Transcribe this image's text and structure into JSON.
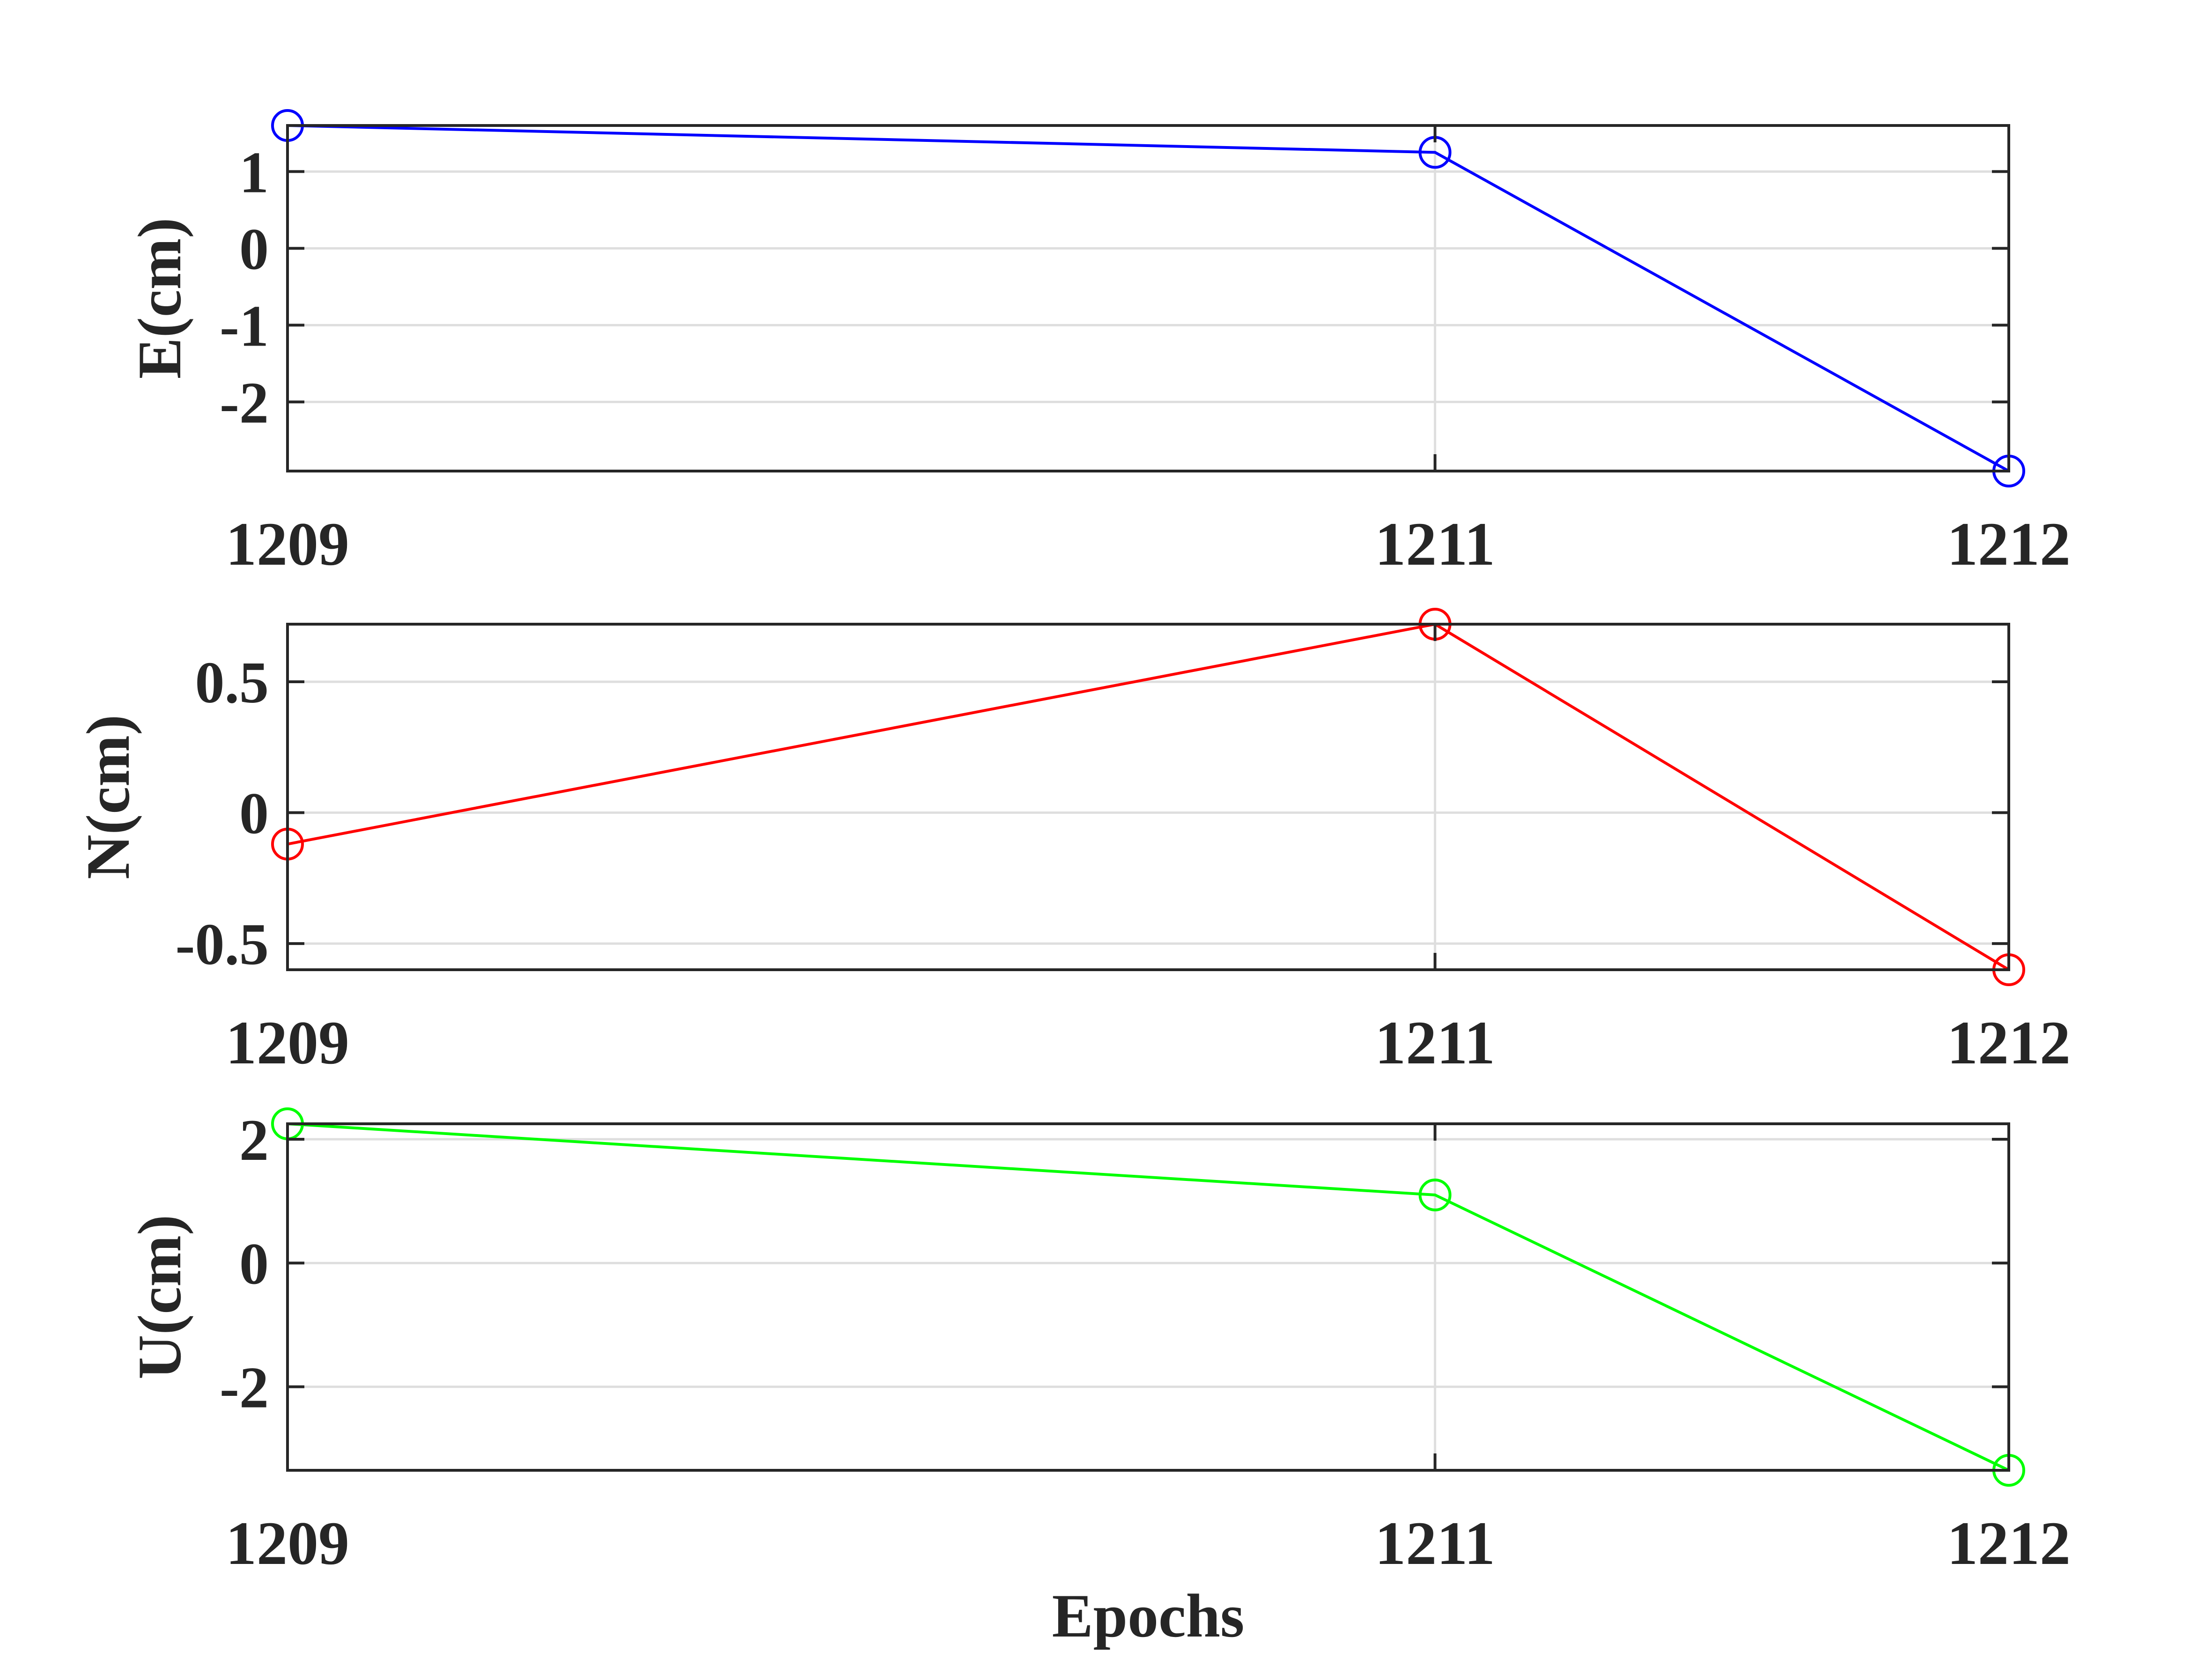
{
  "chart_data": [
    {
      "type": "line",
      "x": [
        1209,
        1211,
        1212
      ],
      "x_tick_labels": [
        "1209",
        "1211",
        "1212"
      ],
      "series": [
        {
          "values": [
            1.6,
            1.25,
            -2.9
          ],
          "color": "#0000ff",
          "marker": "circle"
        }
      ],
      "ylabel": "E(cm)",
      "xlabel": "",
      "y_ticks": [
        1,
        0,
        -1,
        -2
      ],
      "y_tick_labels": [
        "1",
        "0",
        "-1",
        "-2"
      ],
      "ylim": [
        -2.9,
        1.6
      ],
      "grid": true
    },
    {
      "type": "line",
      "x": [
        1209,
        1211,
        1212
      ],
      "x_tick_labels": [
        "1209",
        "1211",
        "1212"
      ],
      "series": [
        {
          "values": [
            -0.12,
            0.72,
            -0.6
          ],
          "color": "#ff0000",
          "marker": "circle"
        }
      ],
      "ylabel": "N(cm)",
      "xlabel": "",
      "y_ticks": [
        0.5,
        0,
        -0.5
      ],
      "y_tick_labels": [
        "0.5",
        "0",
        "-0.5"
      ],
      "ylim": [
        -0.6,
        0.72
      ],
      "grid": true
    },
    {
      "type": "line",
      "x": [
        1209,
        1211,
        1212
      ],
      "x_tick_labels": [
        "1209",
        "1211",
        "1212"
      ],
      "series": [
        {
          "values": [
            2.25,
            1.1,
            -3.35
          ],
          "color": "#00ff00",
          "marker": "circle"
        }
      ],
      "ylabel": "U(cm)",
      "xlabel": "Epochs",
      "y_ticks": [
        2,
        0,
        -2
      ],
      "y_tick_labels": [
        "2",
        "0",
        "-2"
      ],
      "ylim": [
        -3.35,
        2.25
      ],
      "grid": true
    }
  ]
}
